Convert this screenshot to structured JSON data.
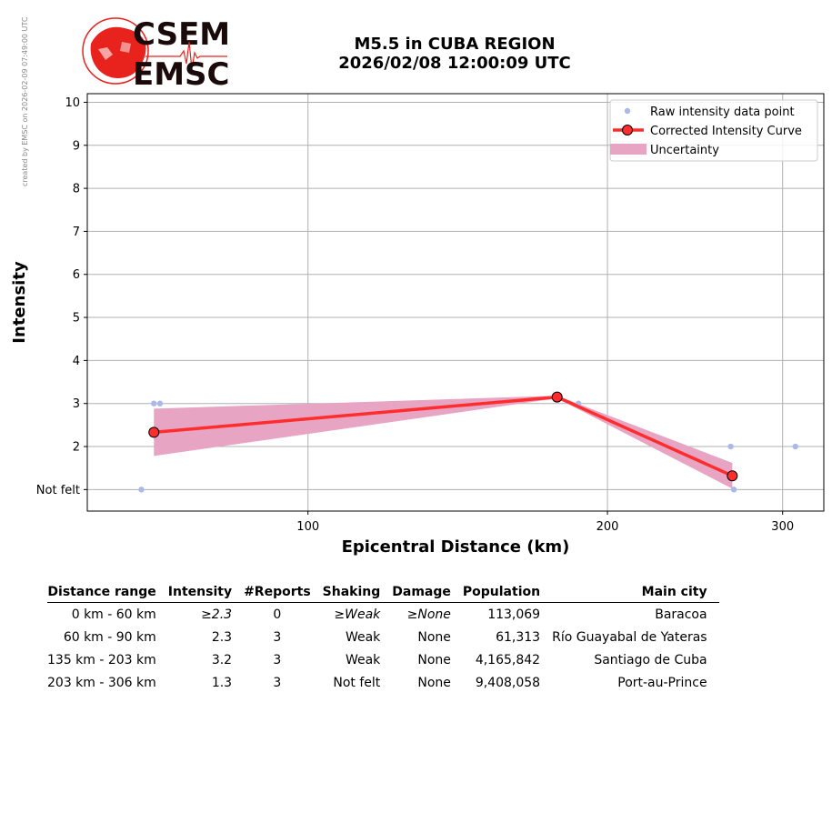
{
  "header": {
    "title_line1": "M5.5 in CUBA REGION",
    "title_line2": "2026/02/08 12:00:09 UTC",
    "logo_text_top": "CSEM",
    "logo_text_bottom": "EMSC",
    "side_note": "created by EMSC on 2026-02-09 07:49:00 UTC"
  },
  "colors": {
    "raw_points": "#aab9e8",
    "curve": "#ff2d2d",
    "uncertainty": "#e7a5c3",
    "grid": "#b0b0b0",
    "logo_red": "#e8231e"
  },
  "chart_data": {
    "type": "line",
    "xlabel": "Epicentral Distance (km)",
    "ylabel": "Intensity",
    "x_scale": "log",
    "xlim": [
      60,
      330
    ],
    "ylim": [
      0.5,
      10.2
    ],
    "x_ticks": [
      100,
      200,
      300
    ],
    "y_ticks": [
      1,
      2,
      3,
      4,
      5,
      6,
      7,
      8,
      9,
      10
    ],
    "y_tick_labels": [
      "Not felt",
      "2",
      "3",
      "4",
      "5",
      "6",
      "7",
      "8",
      "9",
      "10"
    ],
    "grid": true,
    "legend_position": "top-right",
    "legend": [
      "Raw intensity data point",
      "Corrected Intensity Curve",
      "Uncertainty"
    ],
    "raw_points": [
      {
        "x": 68,
        "y": 1
      },
      {
        "x": 70,
        "y": 3
      },
      {
        "x": 71,
        "y": 3
      },
      {
        "x": 187,
        "y": 3
      },
      {
        "x": 266,
        "y": 2
      },
      {
        "x": 268,
        "y": 1
      },
      {
        "x": 309,
        "y": 2
      }
    ],
    "curve": [
      {
        "x": 70,
        "y": 2.33
      },
      {
        "x": 178,
        "y": 3.15
      },
      {
        "x": 267,
        "y": 1.32
      }
    ],
    "uncertainty_upper": [
      {
        "x": 70,
        "y": 2.88
      },
      {
        "x": 178,
        "y": 3.18
      },
      {
        "x": 267,
        "y": 1.62
      }
    ],
    "uncertainty_lower": [
      {
        "x": 70,
        "y": 1.78
      },
      {
        "x": 178,
        "y": 3.12
      },
      {
        "x": 267,
        "y": 1.02
      }
    ]
  },
  "table": {
    "headers": [
      "Distance range",
      "Intensity",
      "#Reports",
      "Shaking",
      "Damage",
      "Population",
      "Main city"
    ],
    "rows": [
      {
        "range": "0 km -   60 km",
        "intensity": "≥2.3",
        "reports": "0",
        "shaking": "≥Weak",
        "damage": "≥None",
        "population": "113,069",
        "city": "Baracoa",
        "italic": true
      },
      {
        "range": "60 km -   90 km",
        "intensity": "2.3",
        "reports": "3",
        "shaking": "Weak",
        "damage": "None",
        "population": "61,313",
        "city": "Río Guayabal de Yateras",
        "italic": false
      },
      {
        "range": "135 km -  203 km",
        "intensity": "3.2",
        "reports": "3",
        "shaking": "Weak",
        "damage": "None",
        "population": "4,165,842",
        "city": "Santiago de Cuba",
        "italic": false
      },
      {
        "range": "203 km -  306 km",
        "intensity": "1.3",
        "reports": "3",
        "shaking": "Not felt",
        "damage": "None",
        "population": "9,408,058",
        "city": "Port-au-Prince",
        "italic": false
      }
    ]
  }
}
